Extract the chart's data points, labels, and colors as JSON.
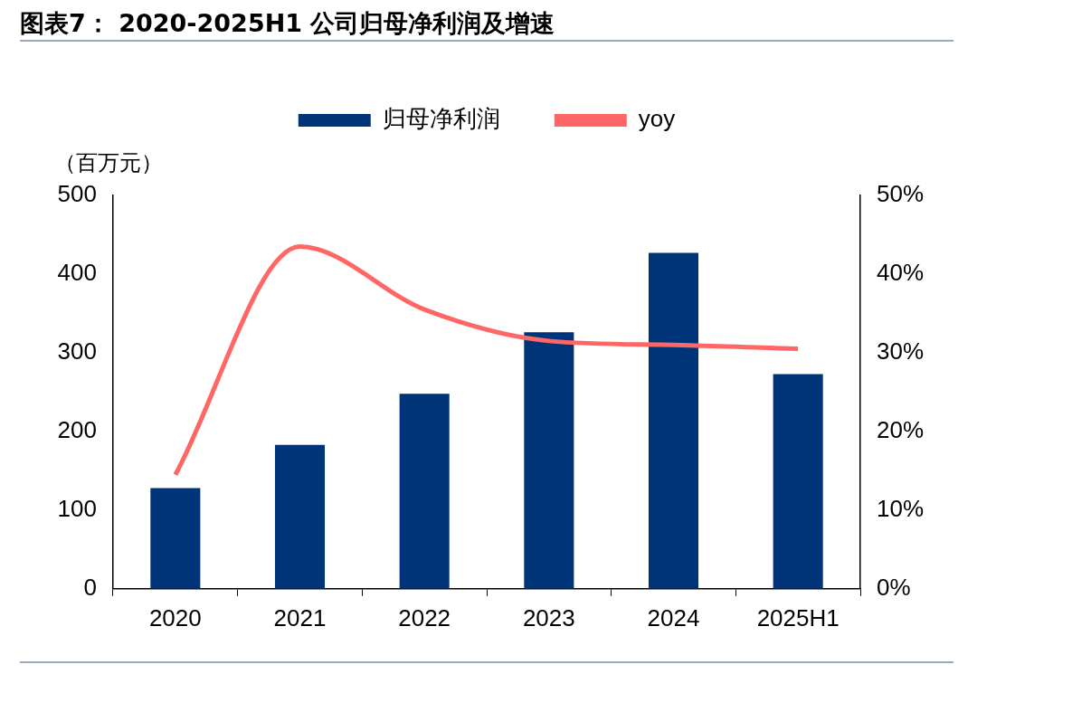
{
  "chart_data": {
    "type": "bar",
    "title": "图表7： 2020-2025H1 公司归母净利润及增速",
    "ylabel": "（百万元）",
    "categories": [
      "2020",
      "2021",
      "2022",
      "2023",
      "2024",
      "2025H1"
    ],
    "series": [
      {
        "name": "归母净利润",
        "color": "#003478",
        "values": [
          128,
          183,
          248,
          326,
          427,
          273
        ]
      },
      {
        "name": "yoy",
        "type": "line",
        "axis": "y2",
        "color": "#ff6666",
        "values": [
          14.5,
          43.5,
          35.5,
          31.5,
          31,
          30.5
        ]
      }
    ],
    "ylim": [
      0,
      500
    ],
    "yticks": [
      0,
      100,
      200,
      300,
      400,
      500
    ],
    "y2lim": [
      0,
      50
    ],
    "y2ticks": [
      {
        "value": 0,
        "label": "0%"
      },
      {
        "value": 10,
        "label": "10%"
      },
      {
        "value": 20,
        "label": "20%"
      },
      {
        "value": 30,
        "label": "30%"
      },
      {
        "value": 40,
        "label": "40%"
      },
      {
        "value": 50,
        "label": "50%"
      }
    ],
    "grid": false,
    "legend": "top",
    "marker": "none",
    "line_style": "solid"
  }
}
